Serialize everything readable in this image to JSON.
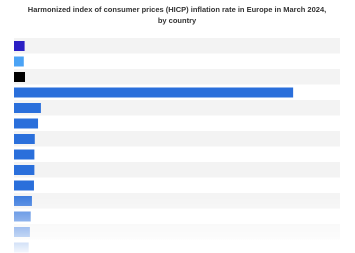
{
  "chart_data": {
    "type": "hbar",
    "title": "Harmonized index of consumer prices (HICP) inflation rate in Europe in March 2024, by country",
    "categories": [
      null,
      null,
      null,
      null,
      null,
      null,
      null,
      null,
      null,
      null,
      null,
      null,
      null,
      null
    ],
    "values": [
      2.6,
      2.4,
      2.7,
      68.5,
      6.6,
      5.9,
      5.1,
      5.0,
      5.0,
      4.9,
      4.4,
      4.1,
      3.9,
      3.6
    ],
    "colors": [
      "#2b1fc4",
      "#4ba3f5",
      "#000000",
      "#2a6fdb",
      "#2a6fdb",
      "#2a6fdb",
      "#2a6fdb",
      "#2a6fdb",
      "#2a6fdb",
      "#2a6fdb",
      "#2a6fdb",
      "#2a6fdb",
      "#2a6fdb",
      "#2a6fdb"
    ],
    "xlim": [
      0,
      80
    ]
  }
}
